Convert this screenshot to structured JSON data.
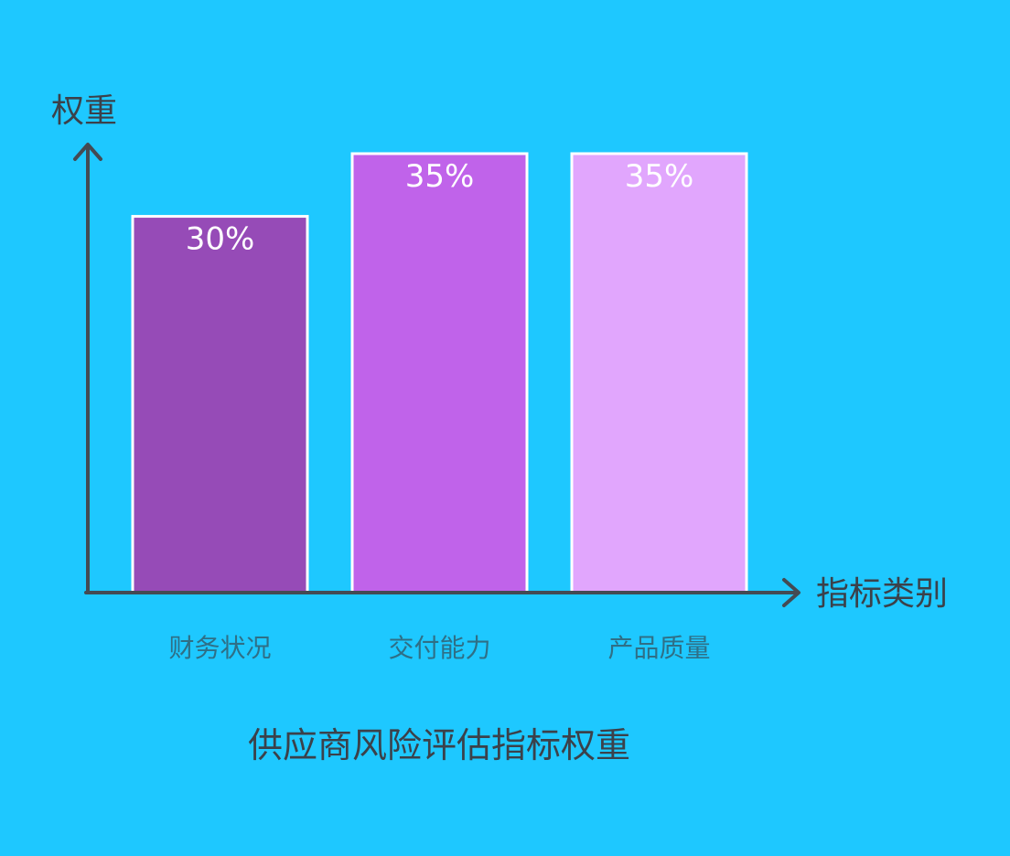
{
  "colors": {
    "background": "#1ec8ff",
    "axis": "#444a53",
    "bar_border": "#ffffff",
    "value_label": "#ffffff",
    "category_label": "#2f6f86",
    "text": "#3b414a"
  },
  "chart_data": {
    "type": "bar",
    "title": "供应商风险评估指标权重",
    "xlabel": "指标类别",
    "ylabel": "权重",
    "categories": [
      "财务状况",
      "交付能力",
      "产品质量"
    ],
    "values": [
      30,
      35,
      35
    ],
    "value_labels": [
      "30%",
      "35%",
      "35%"
    ],
    "bar_colors": [
      "#964bb7",
      "#c063ea",
      "#e1a6fd"
    ],
    "ylim": [
      0,
      40
    ],
    "grid": false,
    "legend": "none"
  }
}
